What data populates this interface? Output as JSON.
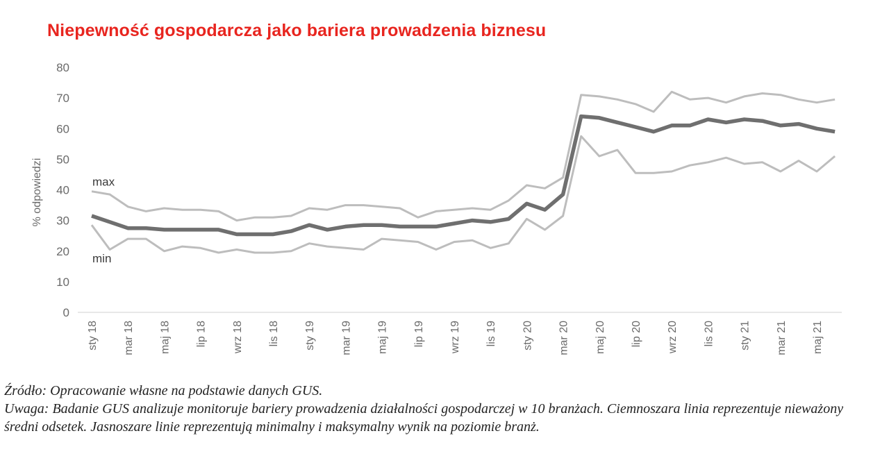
{
  "chart_data": {
    "type": "line",
    "title": "Niepewność gospodarcza jako bariera prowadzenia biznesu",
    "xlabel": "",
    "ylabel": "% odpowiedzi",
    "ylim": [
      0,
      80
    ],
    "yticks": [
      "80",
      "70",
      "60",
      "50",
      "40",
      "30",
      "20",
      "10",
      "0"
    ],
    "grid": false,
    "categories": [
      "sty 18",
      "lut 18",
      "mar 18",
      "kwi 18",
      "maj 18",
      "cze 18",
      "lip 18",
      "sie 18",
      "wrz 18",
      "paź 18",
      "lis 18",
      "gru 18",
      "sty 19",
      "lut 19",
      "mar 19",
      "kwi 19",
      "maj 19",
      "cze 19",
      "lip 19",
      "sie 19",
      "wrz 19",
      "paź 19",
      "lis 19",
      "gru 19",
      "sty 20",
      "lut 20",
      "mar 20",
      "kwi 20",
      "maj 20",
      "cze 20",
      "lip 20",
      "sie 20",
      "wrz 20",
      "paź 20",
      "lis 20",
      "gru 20",
      "sty 21",
      "lut 21",
      "mar 21",
      "kwi 21",
      "maj 21",
      "cze 21"
    ],
    "visible_tick_labels": [
      "sty 18",
      "mar 18",
      "maj 18",
      "lip 18",
      "wrz 18",
      "lis 18",
      "sty 19",
      "mar 19",
      "maj 19",
      "lip 19",
      "wrz 19",
      "lis 19",
      "sty 20",
      "mar 20",
      "maj 20",
      "lip 20",
      "wrz 20",
      "lis 20",
      "sty 21",
      "mar 21",
      "maj 21"
    ],
    "series": [
      {
        "name": "max",
        "color": "#bdbdbd",
        "values": [
          39.5,
          38.5,
          34.5,
          33.0,
          34.0,
          33.5,
          33.5,
          33.0,
          30.0,
          31.0,
          31.0,
          31.5,
          34.0,
          33.5,
          35.0,
          35.0,
          34.5,
          34.0,
          31.0,
          33.0,
          33.5,
          34.0,
          33.5,
          36.5,
          41.5,
          40.5,
          44.0,
          71.0,
          70.5,
          69.5,
          68.0,
          65.5,
          72.0,
          69.5,
          70.0,
          68.5,
          70.5,
          71.5,
          71.0,
          69.5,
          68.5,
          69.5
        ]
      },
      {
        "name": "",
        "color": "#6f6f6f",
        "values": [
          31.5,
          29.5,
          27.5,
          27.5,
          27.0,
          27.0,
          27.0,
          27.0,
          25.5,
          25.5,
          25.5,
          26.5,
          28.5,
          27.0,
          28.0,
          28.5,
          28.5,
          28.0,
          28.0,
          28.0,
          29.0,
          30.0,
          29.5,
          30.5,
          35.5,
          33.5,
          38.5,
          64.0,
          63.5,
          62.0,
          60.5,
          59.0,
          61.0,
          61.0,
          63.0,
          62.0,
          63.0,
          62.5,
          61.0,
          61.5,
          60.0,
          59.0
        ]
      },
      {
        "name": "min",
        "color": "#bdbdbd",
        "values": [
          28.5,
          20.5,
          24.0,
          24.0,
          20.0,
          21.5,
          21.0,
          19.5,
          20.5,
          19.5,
          19.5,
          20.0,
          22.5,
          21.5,
          21.0,
          20.5,
          24.0,
          23.5,
          23.0,
          20.5,
          23.0,
          23.5,
          21.0,
          22.5,
          30.5,
          27.0,
          31.5,
          57.5,
          51.0,
          53.0,
          45.5,
          45.5,
          46.0,
          48.0,
          49.0,
          50.5,
          48.5,
          49.0,
          46.0,
          49.5,
          46.0,
          51.0
        ]
      }
    ],
    "annotations": [
      {
        "text": "max",
        "series": 0
      },
      {
        "text": "min",
        "series": 2
      }
    ]
  },
  "caption": {
    "source": "Źródło: Opracowanie własne na podstawie danych GUS.",
    "note": "Uwaga: Badanie GUS analizuje monitoruje bariery prowadzenia działalności gospodarczej w 10 branżach. Ciemnoszara linia reprezentuje nieważony średni odsetek. Jasnoszare linie reprezentują minimalny i maksymalny wynik na poziomie branż."
  }
}
